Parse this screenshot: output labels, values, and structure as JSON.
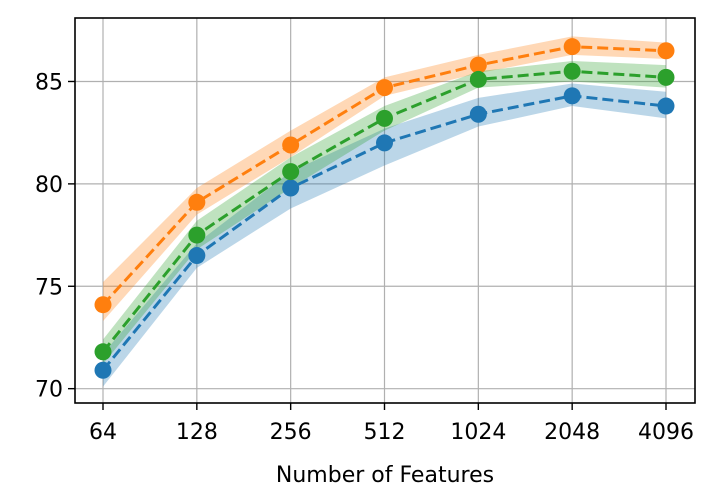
{
  "chart_data": {
    "type": "line",
    "title": "",
    "xlabel": "Number of Features",
    "ylabel": "",
    "x_categories": [
      "64",
      "128",
      "256",
      "512",
      "1024",
      "2048",
      "4096"
    ],
    "y_ticks": [
      70,
      75,
      80,
      85
    ],
    "ylim": [
      69.3,
      88.1
    ],
    "grid": true,
    "legend": "none",
    "series": [
      {
        "color": "#1f77b4",
        "line_style": "dashed",
        "marker": "circle",
        "values": [
          70.9,
          76.5,
          79.8,
          82.0,
          83.4,
          84.3,
          83.8
        ],
        "band_lower": [
          70.1,
          75.9,
          78.8,
          80.9,
          82.8,
          83.8,
          83.2
        ],
        "band_upper": [
          71.7,
          77.1,
          80.6,
          82.7,
          84.2,
          84.9,
          84.5
        ]
      },
      {
        "color": "#ff7f0e",
        "line_style": "dashed",
        "marker": "circle",
        "values": [
          74.1,
          79.1,
          81.9,
          84.7,
          85.8,
          86.7,
          86.5
        ],
        "band_lower": [
          73.3,
          78.5,
          81.3,
          84.3,
          85.4,
          86.3,
          86.1
        ],
        "band_upper": [
          75.2,
          79.8,
          82.6,
          85.2,
          86.3,
          87.2,
          86.9
        ]
      },
      {
        "color": "#2ca02c",
        "line_style": "dashed",
        "marker": "circle",
        "values": [
          71.8,
          77.5,
          80.6,
          83.2,
          85.1,
          85.5,
          85.2
        ],
        "band_lower": [
          71.2,
          76.8,
          79.8,
          82.6,
          84.7,
          85.0,
          84.7
        ],
        "band_upper": [
          72.4,
          78.2,
          81.3,
          83.8,
          85.5,
          86.0,
          85.8
        ]
      }
    ]
  }
}
